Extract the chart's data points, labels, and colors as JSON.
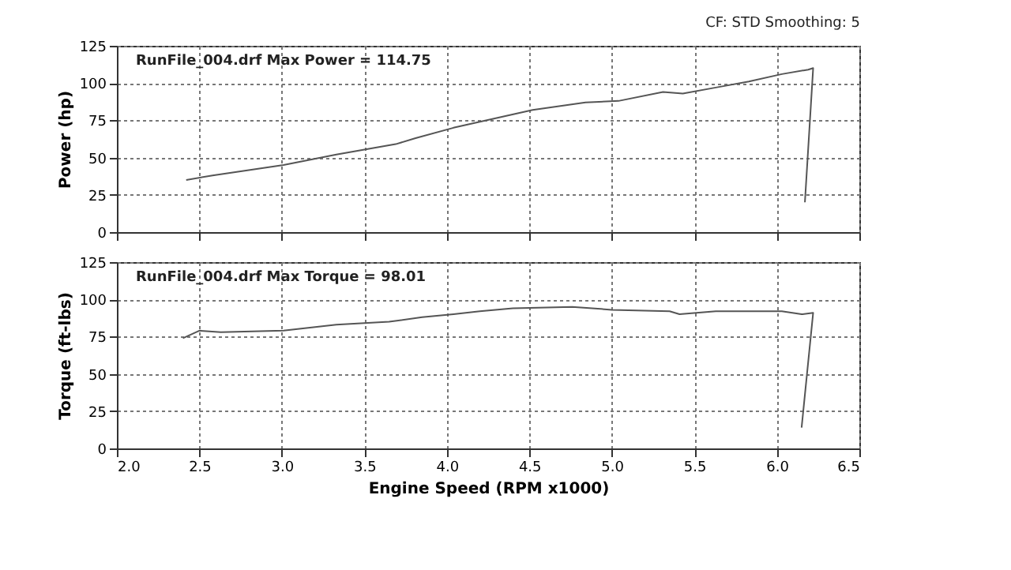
{
  "chart_data": [
    {
      "type": "line",
      "ylabel": "Power (hp)",
      "annotations": [
        "RunFile_004.drf Max Power = 114.75",
        "CF: STD  Smoothing: 5"
      ],
      "x": [
        2.42,
        2.58,
        3.01,
        3.33,
        3.69,
        3.81,
        4.04,
        4.28,
        4.52,
        4.84,
        5.04,
        5.31,
        5.43,
        5.63,
        5.83,
        6.03,
        6.19,
        6.22,
        6.17
      ],
      "series": [
        {
          "color": "#555555",
          "values": [
            35,
            38,
            45,
            52,
            59,
            63,
            70,
            76,
            82,
            87,
            88,
            94,
            93,
            97,
            101,
            106,
            109,
            110,
            20
          ]
        }
      ],
      "xlim": [
        2,
        6.5
      ],
      "xticks": [
        {
          "value": 2,
          "label": null
        },
        {
          "value": 2.5,
          "label": null
        },
        {
          "value": 3,
          "label": null
        },
        {
          "value": 3.5,
          "label": null
        },
        {
          "value": 4,
          "label": null
        },
        {
          "value": 4.5,
          "label": null
        },
        {
          "value": 5,
          "label": null
        },
        {
          "value": 5.5,
          "label": null
        },
        {
          "value": 6,
          "label": null
        },
        {
          "value": 6.5,
          "label": null
        }
      ],
      "ylim": [
        0,
        125
      ],
      "yticks": [
        0,
        25,
        50,
        75,
        100,
        125
      ],
      "grid": true,
      "line_style": "solid",
      "tick_labels": "y"
    },
    {
      "type": "line",
      "ylabel": "Torque (ft-lbs)",
      "xlabel": "Engine Speed (RPM x1000)",
      "annotations": [
        "RunFile_004.drf Max Torque = 98.01"
      ],
      "x": [
        2.4,
        2.5,
        2.63,
        3.01,
        3.33,
        3.65,
        3.85,
        4.04,
        4.2,
        4.4,
        4.76,
        5.0,
        5.35,
        5.41,
        5.63,
        6.03,
        6.15,
        6.22,
        6.15
      ],
      "series": [
        {
          "color": "#555555",
          "values": [
            74,
            79,
            78,
            79,
            83,
            85,
            88,
            90,
            92,
            94,
            95,
            93,
            92,
            90,
            92,
            92,
            90,
            91,
            14
          ]
        }
      ],
      "xlim": [
        2,
        6.5
      ],
      "xticks": [
        {
          "value": 2,
          "label": "2.0"
        },
        {
          "value": 2.5,
          "label": "2.5"
        },
        {
          "value": 3,
          "label": "3.0"
        },
        {
          "value": 3.5,
          "label": "3.5"
        },
        {
          "value": 4,
          "label": "4.0"
        },
        {
          "value": 4.5,
          "label": "4.5"
        },
        {
          "value": 5,
          "label": "5.0"
        },
        {
          "value": 5.5,
          "label": "5.5"
        },
        {
          "value": 6,
          "label": "6.0"
        },
        {
          "value": 6.5,
          "label": "6.5"
        }
      ],
      "ylim": [
        0,
        125
      ],
      "yticks": [
        0,
        25,
        50,
        75,
        100,
        125
      ],
      "grid": true,
      "line_style": "solid"
    }
  ]
}
